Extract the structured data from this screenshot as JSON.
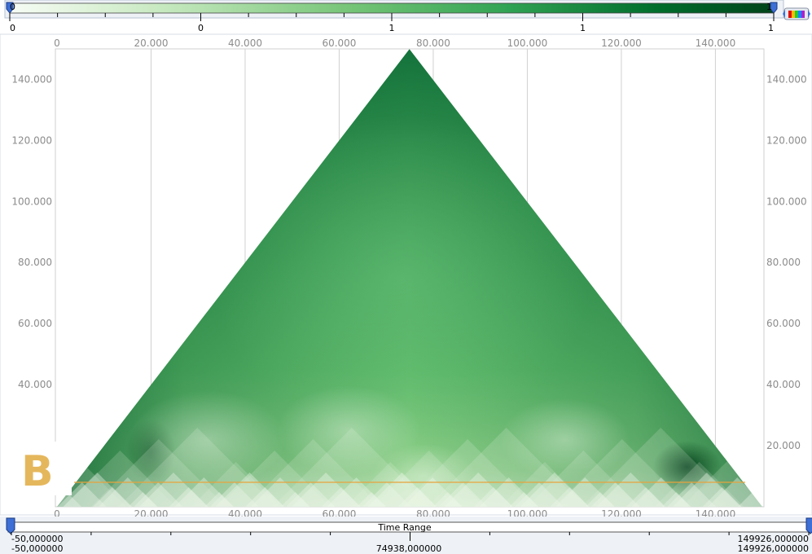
{
  "colorbar": {
    "tick_labels": [
      "0",
      "0",
      "1",
      "1",
      "1"
    ],
    "left_value": "0",
    "right_value": "1",
    "colors": [
      "#f7fcf5",
      "#c7e9c0",
      "#74c476",
      "#31a354",
      "#006d2c",
      "#00441b"
    ]
  },
  "panel_label": "B",
  "time_range": {
    "title": "Time Range",
    "min_label_top": "-50,000000",
    "min_label_bottom": "-50,000000",
    "mid_label": "74938,000000",
    "max_label_top": "149926,000000",
    "max_label_bottom": "149926,000000"
  },
  "chart_data": {
    "type": "heatmap",
    "shape": "triangle",
    "x_tick_labels": [
      "0",
      "20.000",
      "40.000",
      "60.000",
      "80.000",
      "100.000",
      "120.000",
      "140.000"
    ],
    "x_ticks": [
      0,
      20000,
      40000,
      60000,
      80000,
      100000,
      120000,
      140000
    ],
    "y_tick_labels": [
      "20.000",
      "40.000",
      "60.000",
      "80.000",
      "100.000",
      "120.000",
      "140.000"
    ],
    "y_ticks": [
      20000,
      40000,
      60000,
      80000,
      100000,
      120000,
      140000
    ],
    "xlim": [
      0,
      149976
    ],
    "ylim": [
      0,
      149976
    ],
    "apex": [
      74938,
      149926
    ],
    "marker_line_y": 8000,
    "grid": true,
    "colormap": [
      "#f7fcf5",
      "#c7e9c0",
      "#74c476",
      "#31a354",
      "#006d2c",
      "#00441b"
    ],
    "marker_color": "#e8a33d"
  }
}
